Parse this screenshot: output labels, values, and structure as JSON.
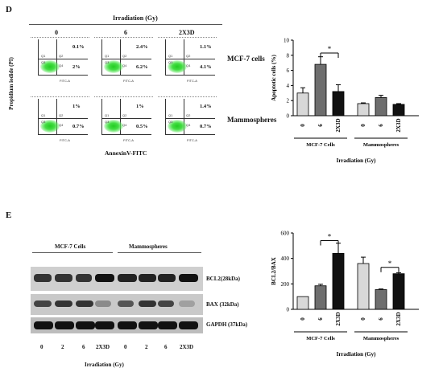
{
  "panel_d": {
    "letter": "D",
    "irradiation_header": "Irradiation (Gy)",
    "columns": [
      "0",
      "6",
      "2X3D"
    ],
    "y_axis_label": "Propidium iodide (PI)",
    "x_axis_label": "AnnexinV-FITC",
    "row_labels": [
      "MCF-7 cells",
      "Mammospheres"
    ],
    "quadrant_labels": [
      "Q1",
      "Q2",
      "Q3",
      "Q4"
    ],
    "facs_x_label": "FITC-A",
    "facs_y_label": "PE-A",
    "plots": [
      {
        "row": 0,
        "col": 0,
        "upper": "0.1%",
        "lower": "2%"
      },
      {
        "row": 0,
        "col": 1,
        "upper": "2.4%",
        "lower": "6.2%"
      },
      {
        "row": 0,
        "col": 2,
        "upper": "1.1%",
        "lower": "4.1%"
      },
      {
        "row": 1,
        "col": 0,
        "upper": "1%",
        "lower": "0.7%"
      },
      {
        "row": 1,
        "col": 1,
        "upper": "1%",
        "lower": "0.5%"
      },
      {
        "row": 1,
        "col": 2,
        "upper": "1.4%",
        "lower": "0.7%"
      }
    ]
  },
  "panel_e": {
    "letter": "E",
    "group_labels": [
      "MCF-7 Cells",
      "Mammospheres"
    ],
    "band_labels": [
      "BCL2(28kDa)",
      "BAX (32kDa)",
      "GAPDH (37kDa)"
    ],
    "lane_labels": [
      "0",
      "2",
      "6",
      "2X3D",
      "0",
      "2",
      "6",
      "2X3D"
    ],
    "x_axis_label": "Irradiation (Gy)"
  },
  "chart_data": [
    {
      "type": "bar",
      "categories": [
        "0",
        "6",
        "2X3D",
        "0",
        "6",
        "2X3D"
      ],
      "groups": [
        "MCF-7 Cells",
        "Mammospheres"
      ],
      "values": [
        3.0,
        6.8,
        3.2,
        1.6,
        2.4,
        1.5
      ],
      "errors": [
        0.7,
        1.0,
        0.9,
        0.1,
        0.3,
        0.1
      ],
      "colors": [
        "#d8d8d8",
        "#6e6e6e",
        "#111111",
        "#d8d8d8",
        "#6e6e6e",
        "#111111"
      ],
      "ylabel": "Apoptotic cells (%)",
      "xlabel": "Irradiation (Gy)",
      "ylim": [
        0,
        10
      ],
      "yticks": [
        "0",
        "2",
        "4",
        "6",
        "8",
        "10"
      ],
      "significance": "*"
    },
    {
      "type": "bar",
      "categories": [
        "0",
        "6",
        "2X3D",
        "0",
        "6",
        "2X3D"
      ],
      "groups": [
        "MCF-7 Cells",
        "Mammospheres"
      ],
      "values": [
        100,
        185,
        440,
        360,
        155,
        280
      ],
      "errors": [
        0,
        12,
        80,
        50,
        5,
        8
      ],
      "colors": [
        "#d8d8d8",
        "#6e6e6e",
        "#111111",
        "#d8d8d8",
        "#6e6e6e",
        "#111111"
      ],
      "ylabel": "BCL2/BAX",
      "xlabel": "Irradiation (Gy)",
      "ylim": [
        0,
        600
      ],
      "yticks": [
        "0",
        "200",
        "400",
        "600"
      ],
      "significance": [
        "*",
        "*"
      ]
    }
  ]
}
